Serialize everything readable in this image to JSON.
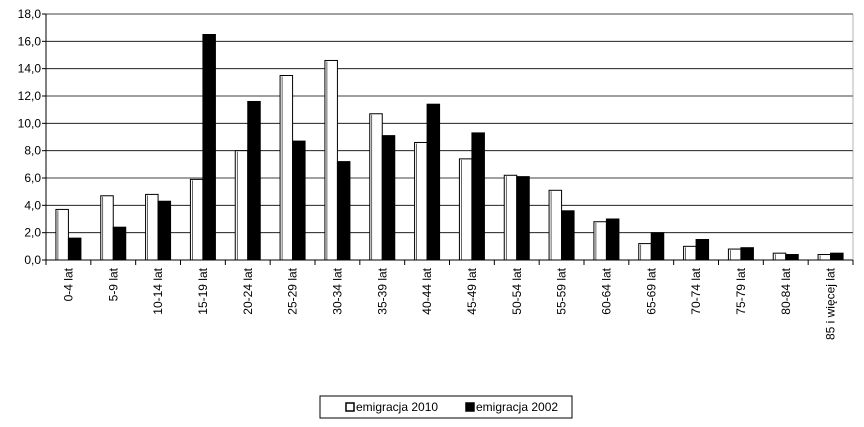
{
  "chart_data": {
    "type": "bar",
    "title": "",
    "xlabel": "",
    "ylabel": "",
    "ylim": [
      0,
      18
    ],
    "ytick_step": 2,
    "ytick_labels": [
      "0,0",
      "2,0",
      "4,0",
      "6,0",
      "8,0",
      "10,0",
      "12,0",
      "14,0",
      "16,0",
      "18,0"
    ],
    "grid": true,
    "legend_position": "bottom",
    "categories": [
      "0-4 lat",
      "5-9 lat",
      "10-14 lat",
      "15-19 lat",
      "20-24 lat",
      "25-29 lat",
      "30-34 lat",
      "35-39 lat",
      "40-44 lat",
      "45-49 lat",
      "50-54 lat",
      "55-59 lat",
      "60-64 lat",
      "65-69 lat",
      "70-74 lat",
      "75-79 lat",
      "80-84 lat",
      "85 i więcej lat"
    ],
    "series": [
      {
        "name": "emigracja 2010",
        "fill": "#ffffff",
        "stroke": "#000000",
        "values": [
          3.7,
          4.7,
          4.8,
          5.9,
          8.0,
          13.5,
          14.6,
          10.7,
          8.6,
          7.4,
          6.2,
          5.1,
          2.8,
          1.2,
          1.0,
          0.8,
          0.5,
          0.4
        ]
      },
      {
        "name": "emigracja 2002",
        "fill": "#000000",
        "stroke": "#000000",
        "values": [
          1.6,
          2.4,
          4.3,
          16.5,
          11.6,
          8.7,
          7.2,
          9.1,
          11.4,
          9.3,
          6.1,
          3.6,
          3.0,
          2.0,
          1.5,
          0.9,
          0.4,
          0.5
        ]
      }
    ]
  }
}
